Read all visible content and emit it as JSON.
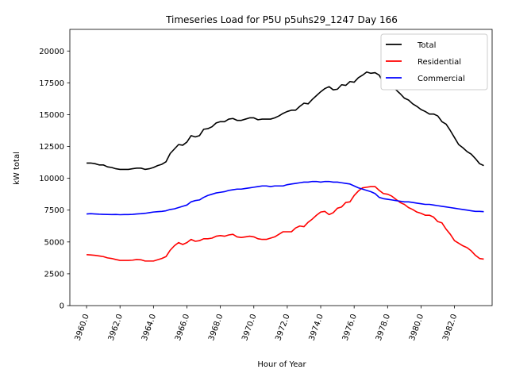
{
  "chart_data": {
    "type": "line",
    "title": "Timeseries Load for P5U p5uhs29_1247  Day 166",
    "xlabel": "Hour of Year",
    "ylabel": "kW total",
    "xlim": [
      3959.0,
      3984.25
    ],
    "ylim": [
      0,
      21700
    ],
    "x_ticks": [
      3960,
      3962,
      3964,
      3966,
      3968,
      3970,
      3972,
      3974,
      3976,
      3978,
      3980,
      3982
    ],
    "x_tick_labels": [
      "3960.0",
      "3962.0",
      "3964.0",
      "3966.0",
      "3968.0",
      "3970.0",
      "3972.0",
      "3974.0",
      "3976.0",
      "3978.0",
      "3980.0",
      "3982.0"
    ],
    "y_ticks": [
      0,
      2500,
      5000,
      7500,
      10000,
      12500,
      15000,
      17500,
      20000
    ],
    "y_tick_labels": [
      "0",
      "2500",
      "5000",
      "7500",
      "10000",
      "12500",
      "15000",
      "17500",
      "20000"
    ],
    "legend_position": "top-right",
    "x": [
      3960.0,
      3960.25,
      3960.5,
      3960.75,
      3961.0,
      3961.25,
      3961.5,
      3961.75,
      3962.0,
      3962.25,
      3962.5,
      3962.75,
      3963.0,
      3963.25,
      3963.5,
      3963.75,
      3964.0,
      3964.25,
      3964.5,
      3964.75,
      3965.0,
      3965.25,
      3965.5,
      3965.75,
      3966.0,
      3966.25,
      3966.5,
      3966.75,
      3967.0,
      3967.25,
      3967.5,
      3967.75,
      3968.0,
      3968.25,
      3968.5,
      3968.75,
      3969.0,
      3969.25,
      3969.5,
      3969.75,
      3970.0,
      3970.25,
      3970.5,
      3970.75,
      3971.0,
      3971.25,
      3971.5,
      3971.75,
      3972.0,
      3972.25,
      3972.5,
      3972.75,
      3973.0,
      3973.25,
      3973.5,
      3973.75,
      3974.0,
      3974.25,
      3974.5,
      3974.75,
      3975.0,
      3975.25,
      3975.5,
      3975.75,
      3976.0,
      3976.25,
      3976.5,
      3976.75,
      3977.0,
      3977.25,
      3977.5,
      3977.75,
      3978.0,
      3978.25,
      3978.5,
      3978.75,
      3979.0,
      3979.25,
      3979.5,
      3979.75,
      3980.0,
      3980.25,
      3980.5,
      3980.75,
      3981.0,
      3981.25,
      3981.5,
      3981.75,
      3982.0,
      3982.25,
      3982.5,
      3982.75,
      3983.0,
      3983.25,
      3983.5,
      3983.75
    ],
    "series": [
      {
        "name": "Total",
        "color": "#000000",
        "values": [
          11200,
          11200,
          11150,
          11050,
          11050,
          10900,
          10850,
          10750,
          10700,
          10700,
          10700,
          10750,
          10800,
          10800,
          10700,
          10750,
          10850,
          11000,
          11100,
          11300,
          11950,
          12300,
          12650,
          12600,
          12850,
          13350,
          13250,
          13350,
          13850,
          13900,
          14050,
          14350,
          14450,
          14450,
          14650,
          14700,
          14550,
          14550,
          14650,
          14750,
          14750,
          14600,
          14650,
          14650,
          14650,
          14750,
          14900,
          15100,
          15250,
          15350,
          15350,
          15650,
          15900,
          15850,
          16200,
          16500,
          16800,
          17050,
          17200,
          16950,
          17000,
          17350,
          17300,
          17600,
          17550,
          17900,
          18100,
          18350,
          18250,
          18300,
          18100,
          17500,
          17150,
          17100,
          16950,
          16650,
          16300,
          16150,
          15850,
          15650,
          15400,
          15250,
          15050,
          15050,
          14900,
          14450,
          14250,
          13750,
          13200,
          12650,
          12400,
          12100,
          11900,
          11550,
          11150,
          11000
        ]
      },
      {
        "name": "Residential",
        "color": "#ff0000",
        "values": [
          4000,
          3980,
          3950,
          3900,
          3850,
          3750,
          3700,
          3620,
          3550,
          3550,
          3550,
          3570,
          3620,
          3600,
          3500,
          3500,
          3500,
          3600,
          3700,
          3850,
          4350,
          4700,
          4950,
          4800,
          4950,
          5200,
          5050,
          5100,
          5250,
          5250,
          5300,
          5450,
          5500,
          5450,
          5550,
          5600,
          5400,
          5350,
          5400,
          5450,
          5400,
          5250,
          5200,
          5200,
          5300,
          5400,
          5600,
          5800,
          5800,
          5800,
          6100,
          6250,
          6200,
          6550,
          6800,
          7100,
          7350,
          7400,
          7150,
          7300,
          7650,
          7750,
          8100,
          8150,
          8650,
          9000,
          9250,
          9300,
          9350,
          9350,
          9050,
          8800,
          8750,
          8600,
          8350,
          8100,
          7950,
          7700,
          7550,
          7350,
          7250,
          7100,
          7100,
          6950,
          6600,
          6500,
          6000,
          5600,
          5100,
          4900,
          4700,
          4550,
          4300,
          3950,
          3700,
          3650
        ]
      },
      {
        "name": "Commercial",
        "color": "#0000ff",
        "values": [
          7200,
          7220,
          7200,
          7180,
          7170,
          7160,
          7150,
          7160,
          7140,
          7150,
          7150,
          7170,
          7200,
          7220,
          7250,
          7300,
          7350,
          7380,
          7400,
          7450,
          7550,
          7600,
          7700,
          7800,
          7900,
          8150,
          8250,
          8300,
          8500,
          8650,
          8750,
          8850,
          8900,
          8950,
          9050,
          9100,
          9150,
          9150,
          9200,
          9250,
          9300,
          9350,
          9400,
          9400,
          9350,
          9400,
          9400,
          9400,
          9500,
          9550,
          9600,
          9650,
          9700,
          9700,
          9750,
          9750,
          9700,
          9750,
          9750,
          9700,
          9700,
          9650,
          9600,
          9550,
          9400,
          9250,
          9150,
          9050,
          8950,
          8800,
          8500,
          8400,
          8350,
          8300,
          8250,
          8200,
          8150,
          8150,
          8100,
          8050,
          8000,
          7950,
          7950,
          7900,
          7850,
          7800,
          7750,
          7700,
          7650,
          7600,
          7550,
          7500,
          7450,
          7400,
          7400,
          7380
        ]
      }
    ]
  }
}
